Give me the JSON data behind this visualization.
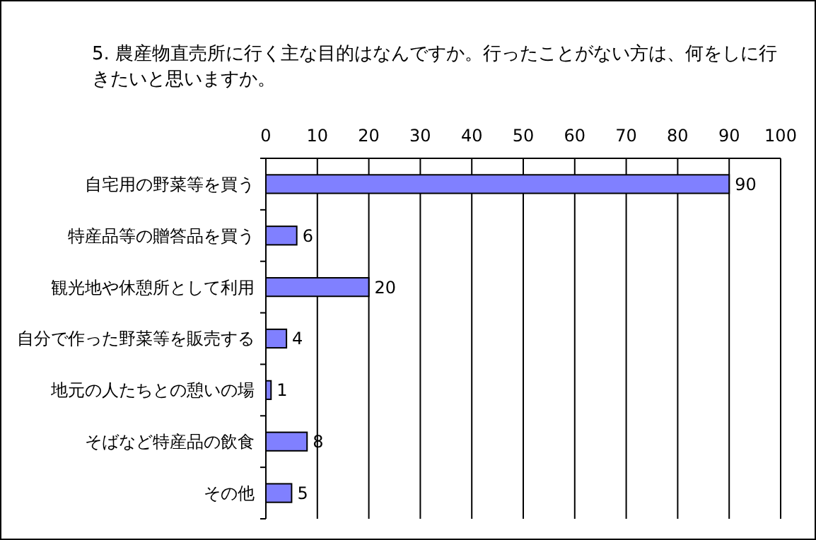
{
  "chart_data": {
    "type": "bar",
    "orientation": "horizontal",
    "title": "5. 農産物直売所に行く主な目的はなんですか。行ったことがない方は、何をしに行きたいと思いますか。",
    "categories": [
      "自宅用の野菜等を買う",
      "特産品等の贈答品を買う",
      "観光地や休憩所として利用",
      "自分で作った野菜等を販売する",
      "地元の人たちとの憩いの場",
      "そばなど特産品の飲食",
      "その他"
    ],
    "values": [
      90,
      6,
      20,
      4,
      1,
      8,
      5
    ],
    "color": "#8080ff",
    "xlim": [
      0,
      100
    ],
    "xticks": [
      0,
      10,
      20,
      30,
      40,
      50,
      60,
      70,
      80,
      90,
      100
    ],
    "grid": "x",
    "data_labels": true
  }
}
